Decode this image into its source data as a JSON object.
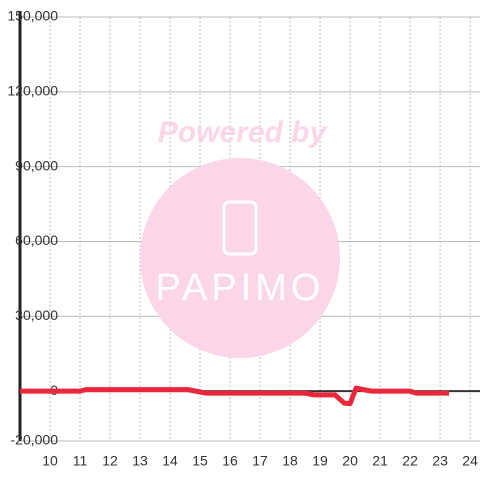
{
  "chart_data": {
    "type": "line",
    "watermark": {
      "top": "Powered by",
      "logo": "PAPIMO"
    },
    "x": [
      9,
      11,
      11.2,
      14.6,
      15.2,
      18.5,
      18.8,
      19.5,
      19.8,
      20.0,
      20.2,
      20.7,
      22,
      22.2,
      23.3
    ],
    "series": [
      {
        "color": "#e8283a",
        "values": [
          0,
          0,
          600,
          600,
          -800,
          -800,
          -1500,
          -1500,
          -4800,
          -5000,
          1200,
          0,
          0,
          -800,
          -800
        ]
      }
    ],
    "xlim": [
      9,
      24.33
    ],
    "xticks": [
      10,
      11,
      12,
      13,
      14,
      15,
      16,
      17,
      18,
      19,
      20,
      21,
      22,
      23,
      24
    ],
    "ylim": [
      -20000,
      150000
    ],
    "yticks": [
      {
        "value": -20000,
        "label": "-20,000"
      },
      0,
      {
        "value": 30000,
        "label": "30,000"
      },
      {
        "value": 60000,
        "label": "60,000"
      },
      {
        "value": 90000,
        "label": "90,000"
      },
      {
        "value": 120000,
        "label": "120,000"
      },
      {
        "value": 150000,
        "label": "150,000"
      }
    ],
    "grid": true
  }
}
